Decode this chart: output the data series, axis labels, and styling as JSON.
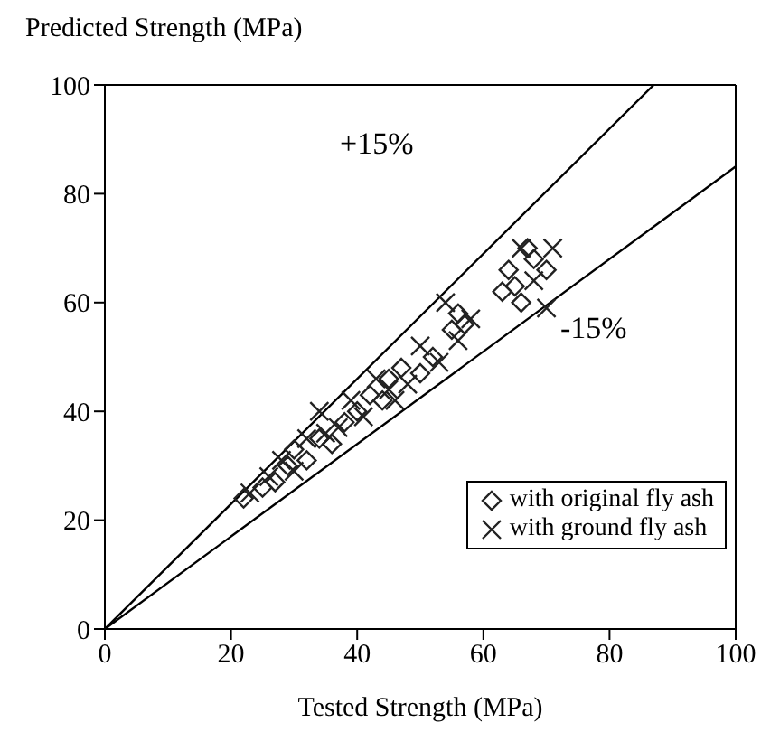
{
  "chart_data": {
    "type": "scatter",
    "xlabel": "Tested Strength  (MPa)",
    "ylabel": "Predicted Strength  (MPa)",
    "xlim": [
      0,
      100
    ],
    "ylim": [
      0,
      100
    ],
    "xticks": [
      0,
      20,
      40,
      60,
      80,
      100
    ],
    "yticks": [
      0,
      20,
      40,
      60,
      80,
      100
    ],
    "grid": false,
    "legend": "bottom right",
    "series": [
      {
        "name": "with original fly ash",
        "color": "#222222",
        "marker": "diamond",
        "x": [
          22,
          25,
          27,
          29,
          30,
          32,
          34,
          36,
          38,
          40,
          42,
          44,
          45,
          47,
          50,
          52,
          55,
          56,
          57,
          63,
          64,
          65,
          66,
          68,
          70,
          67
        ],
        "values": [
          24,
          26,
          27,
          30,
          33,
          31,
          35,
          34,
          38,
          40,
          43,
          42,
          46,
          48,
          47,
          50,
          55,
          58,
          56,
          62,
          66,
          63,
          60,
          68,
          66,
          70
        ]
      },
      {
        "name": "with ground fly ash",
        "color": "#222222",
        "marker": "cross",
        "x": [
          23,
          26,
          28,
          30,
          32,
          34,
          35,
          37,
          39,
          41,
          43,
          45,
          46,
          48,
          50,
          53,
          54,
          56,
          58,
          66,
          68,
          70,
          71
        ],
        "values": [
          25,
          28,
          31,
          29,
          35,
          40,
          36,
          37,
          42,
          39,
          46,
          44,
          42,
          45,
          52,
          49,
          60,
          53,
          57,
          70,
          64,
          59,
          70
        ]
      },
      {
        "type": "line",
        "color": "#000000",
        "x": [
          0,
          87
        ],
        "values": [
          0,
          100
        ]
      },
      {
        "type": "line",
        "color": "#000000",
        "x": [
          0,
          100
        ],
        "values": [
          0,
          85
        ]
      }
    ],
    "annotations": [
      "+15%",
      "-15%"
    ]
  }
}
